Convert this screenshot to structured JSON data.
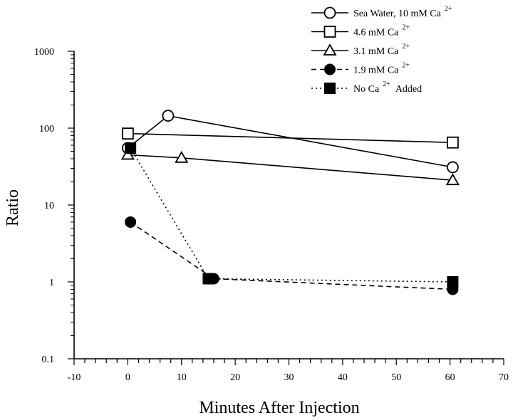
{
  "chart_data": {
    "type": "line",
    "xlabel": "Minutes After Injection",
    "ylabel": "Ratio",
    "xlim": [
      -10,
      70
    ],
    "ylim": [
      0.1,
      1000
    ],
    "yscale": "log",
    "x_ticks": [
      "-10",
      "0",
      "10",
      "20",
      "30",
      "40",
      "50",
      "60",
      "70"
    ],
    "y_ticks": [
      "0.1",
      "1",
      "10",
      "100",
      "1000"
    ],
    "grid": false,
    "legend_placement": "top-right",
    "series": [
      {
        "name": "Sea Water, 10 mM Ca",
        "name_sup": "2+",
        "marker": "open-circle",
        "line": "solid",
        "x": [
          0,
          7.5,
          60.5
        ],
        "y": [
          55,
          145,
          31
        ]
      },
      {
        "name": "4.6 mM Ca",
        "name_sup": "2+",
        "marker": "open-square",
        "line": "solid",
        "x": [
          0,
          60.5
        ],
        "y": [
          85,
          65
        ]
      },
      {
        "name": "3.1 mM Ca",
        "name_sup": "2+",
        "marker": "open-triangle",
        "line": "solid",
        "x": [
          0,
          10,
          60.5
        ],
        "y": [
          45,
          41,
          21
        ]
      },
      {
        "name": "1.9 mM Ca",
        "name_sup": "2+",
        "marker": "filled-circle",
        "line": "dashed",
        "x": [
          0.5,
          16,
          60.5
        ],
        "y": [
          6,
          1.1,
          0.8
        ]
      },
      {
        "name": "No Ca",
        "name_sup": "2+",
        "name_suffix": "Added",
        "marker": "filled-square",
        "line": "dotted",
        "x": [
          0.5,
          15,
          60.5
        ],
        "y": [
          55,
          1.1,
          1.0
        ]
      }
    ]
  }
}
